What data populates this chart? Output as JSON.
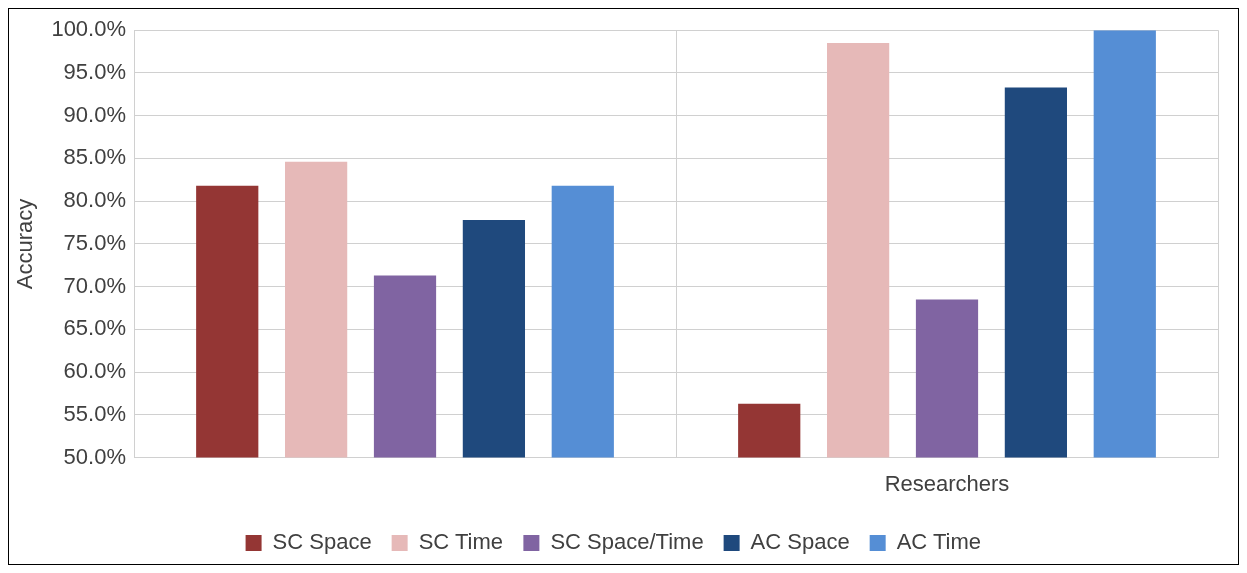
{
  "chart_data": {
    "type": "bar",
    "ylabel": "Accuracy",
    "categories": [
      null,
      "Researchers"
    ],
    "series": [
      {
        "name": "SC Space",
        "color": "#943634",
        "values": [
          81.8,
          56.3
        ]
      },
      {
        "name": "SC Time",
        "color": "#e6b9b8",
        "values": [
          84.6,
          98.5
        ]
      },
      {
        "name": "SC Space/Time",
        "color": "#8064a2",
        "values": [
          71.3,
          68.5
        ]
      },
      {
        "name": "AC Space",
        "color": "#1f497d",
        "values": [
          77.8,
          93.3
        ]
      },
      {
        "name": "AC Time",
        "color": "#558ed5",
        "values": [
          81.8,
          100
        ]
      }
    ],
    "ylim": [
      50,
      100
    ],
    "yticks": [
      {
        "value": 50,
        "label": "50.0%"
      },
      {
        "value": 55,
        "label": "55.0%"
      },
      {
        "value": 60,
        "label": "60.0%"
      },
      {
        "value": 65,
        "label": "65.0%"
      },
      {
        "value": 70,
        "label": "70.0%"
      },
      {
        "value": 75,
        "label": "75.0%"
      },
      {
        "value": 80,
        "label": "80.0%"
      },
      {
        "value": 85,
        "label": "85.0%"
      },
      {
        "value": 90,
        "label": "90.0%"
      },
      {
        "value": 95,
        "label": "95.0%"
      },
      {
        "value": 100,
        "label": "100.0%"
      }
    ],
    "grid": true,
    "legend": "bottom"
  }
}
